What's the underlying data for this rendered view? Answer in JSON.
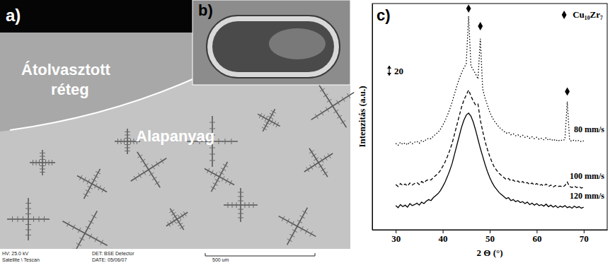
{
  "panels": {
    "a": {
      "label": "a)",
      "annotations": [
        "Átolvasztott réteg",
        "Alapanyag"
      ],
      "footer": [
        "HV: 25.0 kV",
        "DET: BSE Detector",
        "Satellite \\ Tescan",
        "DATE: 05/06/07",
        "500 um"
      ]
    },
    "b": {
      "label": "b)"
    }
  },
  "chart_data": {
    "type": "line",
    "title": "c)",
    "x_label": "2 Θ (°)",
    "y_label": "Intenzitás (a.u.)",
    "x": [
      30,
      30.5,
      31,
      31.5,
      32,
      32.5,
      33,
      33.5,
      34,
      34.5,
      35,
      35.5,
      36,
      36.5,
      37,
      37.5,
      38,
      38.5,
      39,
      39.5,
      40,
      40.5,
      41,
      41.5,
      42,
      42.5,
      43,
      43.5,
      44,
      44.5,
      45,
      45.5,
      46,
      46.5,
      47,
      47.5,
      48,
      48.5,
      49,
      49.5,
      50,
      50.5,
      51,
      51.5,
      52,
      52.5,
      53,
      53.5,
      54,
      54.5,
      55,
      55.5,
      56,
      56.5,
      57,
      57.5,
      58,
      58.5,
      59,
      59.5,
      60,
      60.5,
      61,
      61.5,
      62,
      62.5,
      63,
      63.5,
      64,
      64.5,
      65,
      65.5,
      66,
      66.5,
      67,
      67.5,
      68,
      68.5,
      69,
      69.5,
      70
    ],
    "series": [
      {
        "name": "80 mm/s",
        "color": "#000000",
        "line_style": "dotted",
        "values": [
          172,
          168,
          174,
          170,
          173,
          169,
          175,
          171,
          174,
          176,
          172,
          178,
          175,
          180,
          182,
          181,
          186,
          190,
          194,
          200,
          208,
          217,
          228,
          240,
          254,
          270,
          286,
          300,
          312,
          322,
          330,
          425,
          326,
          318,
          310,
          300,
          380,
          280,
          262,
          248,
          234,
          224,
          216,
          210,
          204,
          200,
          196,
          192,
          194,
          189,
          191,
          187,
          189,
          185,
          188,
          184,
          186,
          182,
          185,
          181,
          184,
          180,
          182,
          179,
          183,
          178,
          181,
          177,
          180,
          176,
          179,
          177,
          180,
          255,
          178,
          176,
          179,
          176,
          178,
          175,
          177
        ]
      },
      {
        "name": "100 mm/s",
        "color": "#000000",
        "line_style": "dashed",
        "values": [
          90,
          86,
          92,
          88,
          91,
          87,
          93,
          89,
          92,
          94,
          90,
          96,
          93,
          98,
          100,
          99,
          104,
          108,
          112,
          118,
          126,
          135,
          146,
          158,
          172,
          190,
          208,
          226,
          244,
          258,
          268,
          278,
          266,
          256,
          248,
          250,
          218,
          196,
          176,
          160,
          146,
          134,
          124,
          118,
          112,
          108,
          104,
          100,
          102,
          97,
          99,
          95,
          97,
          93,
          96,
          92,
          94,
          90,
          93,
          89,
          92,
          88,
          90,
          87,
          91,
          86,
          89,
          85,
          88,
          86,
          87,
          85,
          88,
          95,
          86,
          84,
          87,
          84,
          86,
          83,
          85
        ]
      },
      {
        "name": "120 mm/s",
        "color": "#000000",
        "line_style": "solid",
        "values": [
          48,
          44,
          50,
          46,
          49,
          45,
          52,
          48,
          50,
          53,
          49,
          55,
          52,
          57,
          60,
          58,
          64,
          68,
          72,
          78,
          86,
          95,
          106,
          118,
          132,
          150,
          168,
          186,
          204,
          218,
          228,
          232,
          226,
          214,
          198,
          180,
          162,
          146,
          130,
          116,
          104,
          94,
          86,
          80,
          74,
          70,
          66,
          62,
          64,
          58,
          60,
          56,
          58,
          54,
          56,
          52,
          55,
          50,
          53,
          49,
          52,
          48,
          50,
          47,
          51,
          46,
          49,
          45,
          48,
          44,
          47,
          45,
          48,
          44,
          46,
          43,
          47,
          44,
          46,
          43,
          45
        ]
      },
      {
        "name": "Cu₁₀Zr₇",
        "type": "scatter",
        "marker": "diamond",
        "color": "#000000",
        "x": [
          45.5,
          48,
          66.5
        ],
        "values": [
          440,
          405,
          275
        ]
      }
    ],
    "xlim": [
      25,
      75
    ],
    "xticks": [
      30,
      40,
      50,
      60,
      70
    ],
    "ylim": [
      0,
      450
    ],
    "yticks": [],
    "tick_labels": "x",
    "legend": "upper right",
    "scale_bar": 20
  }
}
